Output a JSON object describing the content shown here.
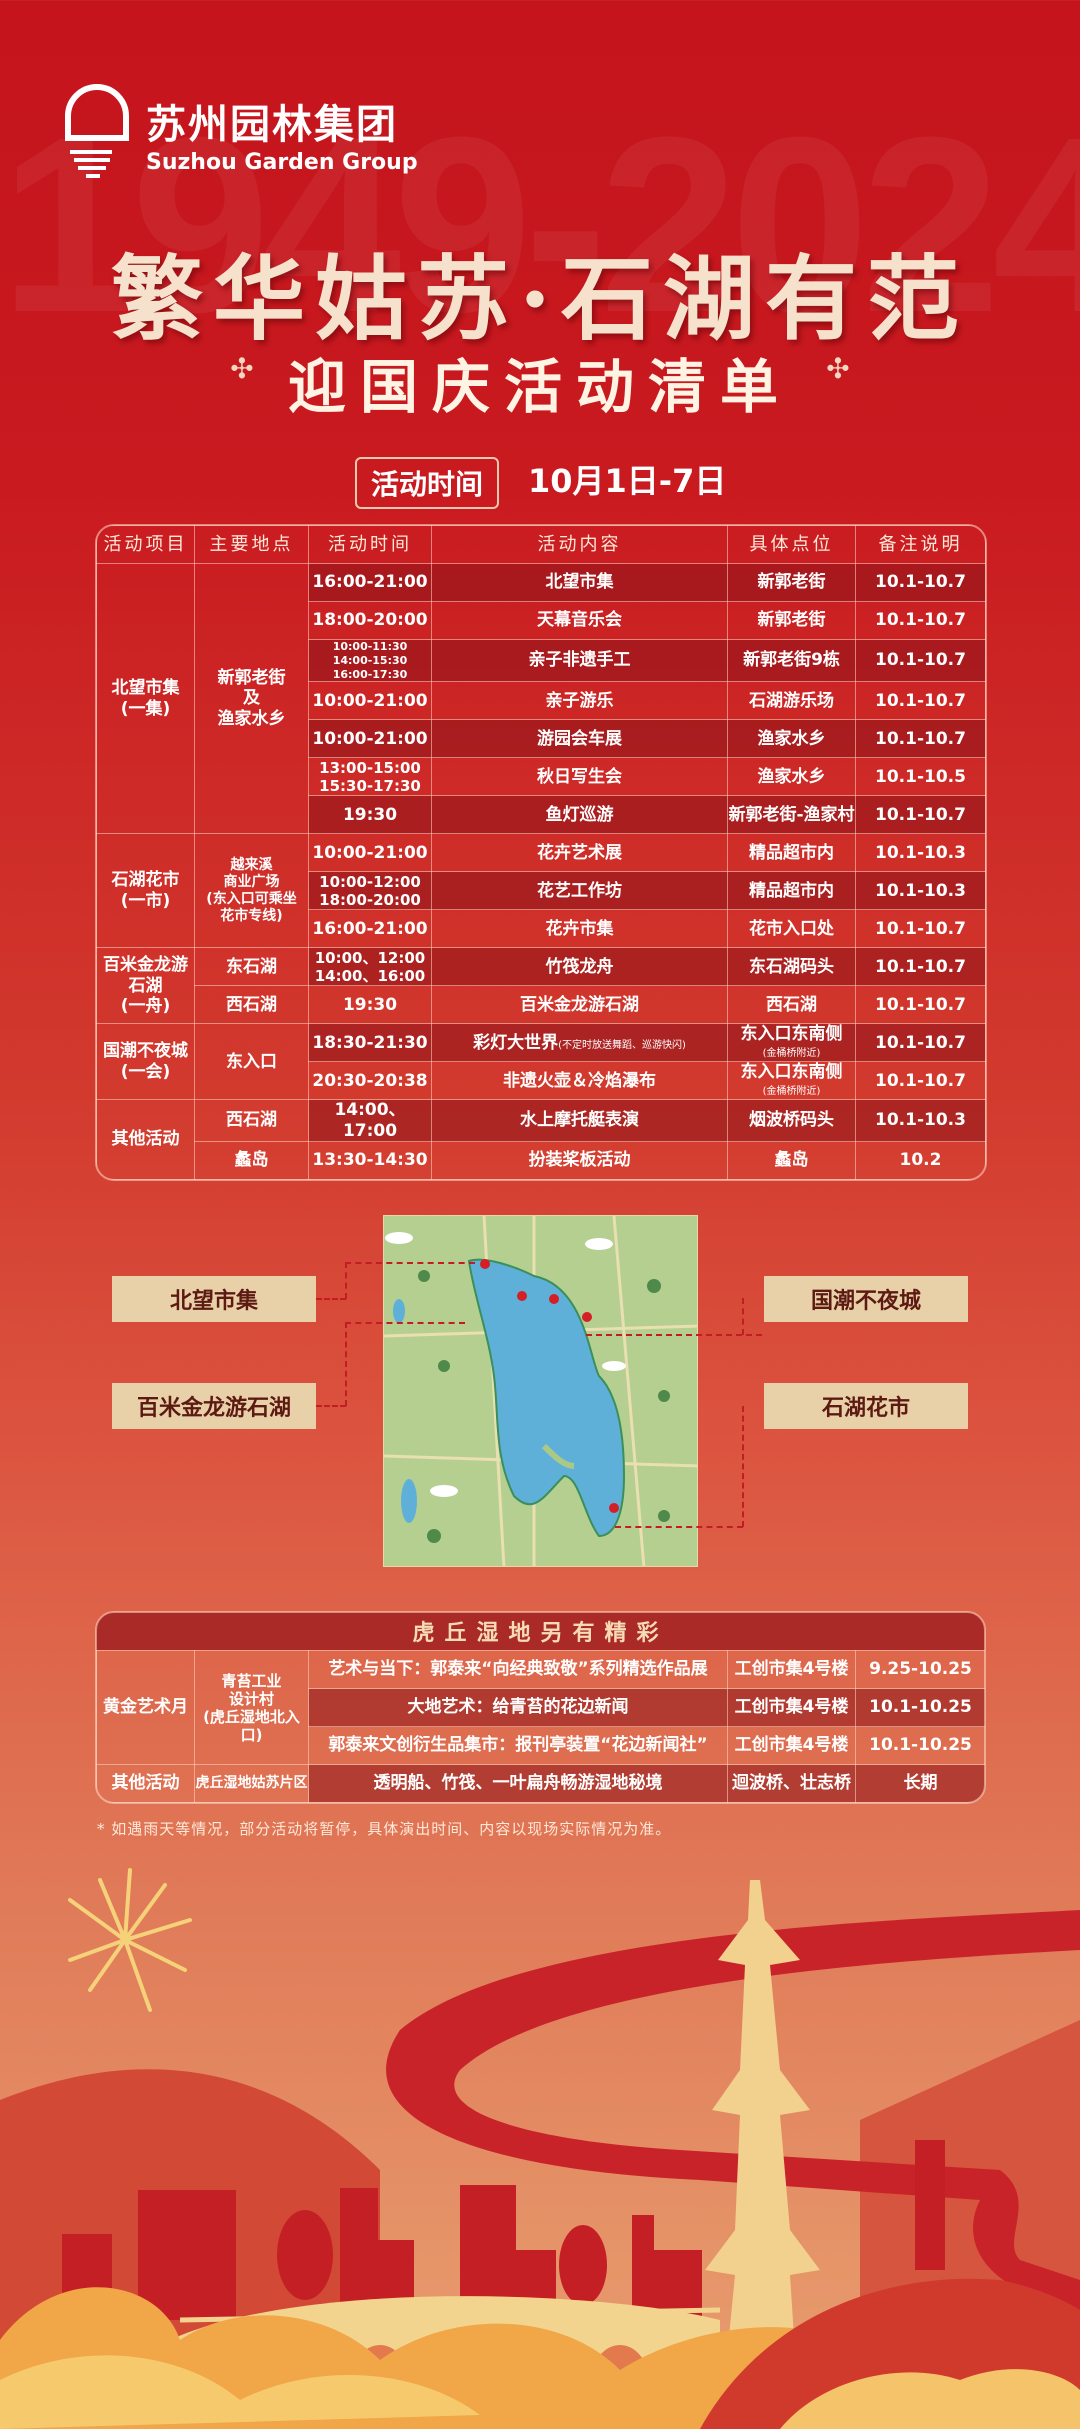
{
  "watermark": "1949-2024",
  "logo": {
    "cn": "苏州园林集团",
    "en": "Suzhou Garden Group"
  },
  "slogan": "繁华姑苏·石湖有范",
  "subtitle": "迎国庆活动清单",
  "time": {
    "label": "活动时间",
    "value": "10月1日-7日"
  },
  "main_table": {
    "headers": [
      "活动项目",
      "主要地点",
      "活动时间",
      "活动内容",
      "具体点位",
      "备注说明"
    ],
    "groups": [
      {
        "category": "北望市集\n(一集)",
        "locations": [
          {
            "name": "新郭老街\n及\n渔家水乡",
            "rows": [
              {
                "time": "16:00-21:00",
                "content": "北望市集",
                "place": "新郭老街",
                "note": "10.1-10.7"
              },
              {
                "time": "18:00-20:00",
                "content": "天幕音乐会",
                "place": "新郭老街",
                "note": "10.1-10.7"
              },
              {
                "time": "10:00-11:30\n14:00-15:30\n16:00-17:30",
                "content": "亲子非遗手工",
                "place": "新郭老街9栋",
                "note": "10.1-10.7"
              },
              {
                "time": "10:00-21:00",
                "content": "亲子游乐",
                "place": "石湖游乐场",
                "note": "10.1-10.7"
              },
              {
                "time": "10:00-21:00",
                "content": "游园会车展",
                "place": "渔家水乡",
                "note": "10.1-10.7"
              },
              {
                "time": "13:00-15:00\n15:30-17:30",
                "content": "秋日写生会",
                "place": "渔家水乡",
                "note": "10.1-10.5"
              },
              {
                "time": "19:30",
                "content": "鱼灯巡游",
                "place": "新郭老街-渔家村",
                "note": "10.1-10.7"
              }
            ]
          }
        ]
      },
      {
        "category": "石湖花市\n(一市)",
        "locations": [
          {
            "name": "越来溪\n商业广场\n(东入口可乘坐\n花市专线)",
            "rows": [
              {
                "time": "10:00-21:00",
                "content": "花卉艺术展",
                "place": "精品超市内",
                "note": "10.1-10.3"
              },
              {
                "time": "10:00-12:00\n18:00-20:00",
                "content": "花艺工作坊",
                "place": "精品超市内",
                "note": "10.1-10.3"
              },
              {
                "time": "16:00-21:00",
                "content": "花卉市集",
                "place": "花市入口处",
                "note": "10.1-10.7"
              }
            ]
          }
        ]
      },
      {
        "category": "百米金龙游石湖\n(一舟)",
        "locations": [
          {
            "name": "东石湖",
            "rows": [
              {
                "time": "10:00、12:00\n14:00、16:00",
                "content": "竹筏龙舟",
                "place": "东石湖码头",
                "note": "10.1-10.7"
              }
            ]
          },
          {
            "name": "西石湖",
            "rows": [
              {
                "time": "19:30",
                "content": "百米金龙游石湖",
                "place": "西石湖",
                "note": "10.1-10.7"
              }
            ]
          }
        ]
      },
      {
        "category": "国潮不夜城\n(一会)",
        "locations": [
          {
            "name": "东入口",
            "rows": [
              {
                "time": "18:30-21:30",
                "content": "彩灯大世界",
                "content_note": "(不定时放送舞蹈、巡游快闪)",
                "place": "东入口东南侧",
                "place_note": "(金桶桥附近)",
                "note": "10.1-10.7"
              },
              {
                "time": "20:30-20:38",
                "content": "非遗火壶＆冷焰瀑布",
                "place": "东入口东南侧",
                "place_note": "(金桶桥附近)",
                "note": "10.1-10.7"
              }
            ]
          }
        ]
      },
      {
        "category": "其他活动",
        "locations": [
          {
            "name": "西石湖",
            "rows": [
              {
                "time": "14:00、17:00",
                "content": "水上摩托艇表演",
                "place": "烟波桥码头",
                "note": "10.1-10.3"
              }
            ]
          },
          {
            "name": "蠡岛",
            "rows": [
              {
                "time": "13:30-14:30",
                "content": "扮装桨板活动",
                "place": "蠡岛",
                "note": "10.2"
              }
            ]
          }
        ]
      }
    ]
  },
  "map_labels": {
    "left": [
      "北望市集",
      "百米金龙游石湖"
    ],
    "right": [
      "国潮不夜城",
      "石湖花市"
    ]
  },
  "huqiu_table": {
    "title": "虎丘湿地另有精彩",
    "groups": [
      {
        "category": "黄金艺术月",
        "location": "青苔工业\n设计村\n(虎丘湿地北入口)",
        "rows": [
          {
            "content": "艺术与当下：郭泰来“向经典致敬”系列精选作品展",
            "place": "工创市集4号楼",
            "note": "9.25-10.25"
          },
          {
            "content": "大地艺术：给青苔的花边新闻",
            "place": "工创市集4号楼",
            "note": "10.1-10.25"
          },
          {
            "content": "郭泰来文创衍生品集市：报刊亭装置“花边新闻社”",
            "place": "工创市集4号楼",
            "note": "10.1-10.25"
          }
        ]
      },
      {
        "category": "其他活动",
        "location": "虎丘湿地姑苏片区",
        "rows": [
          {
            "content": "透明船、竹筏、一叶扁舟畅游湿地秘境",
            "place": "迴波桥、壮志桥",
            "note": "长期"
          }
        ]
      }
    ]
  },
  "footnote": "* 如遇雨天等情况，部分活动将暂停，具体演出时间、内容以现场实际情况为准。",
  "colors": {
    "primary_red": "#c5141c",
    "dark_row": "#a8242a",
    "label_bg": "#e8d0a8",
    "gold": "#f6e2cc"
  }
}
